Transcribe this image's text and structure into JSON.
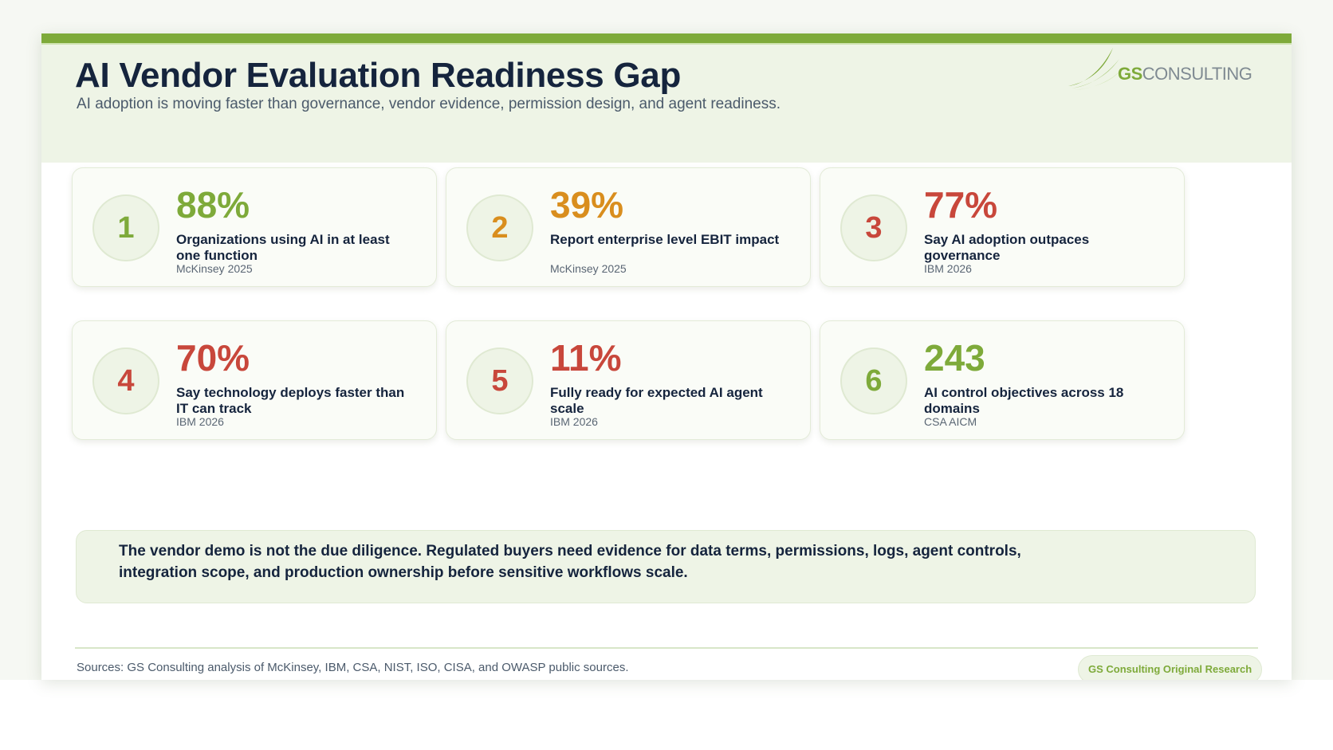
{
  "header": {
    "title": "AI Vendor Evaluation Readiness Gap",
    "subtitle": "AI adoption is moving faster than governance, vendor evidence, permission design, and agent readiness."
  },
  "logo": {
    "prefix": "GS",
    "suffix": "CONSULTING"
  },
  "colors": {
    "accent_green": "#7eaa3a",
    "accent_orange": "#d98e1e",
    "accent_red": "#c8473b",
    "navy": "#15243d"
  },
  "cards": [
    {
      "number": "1",
      "stat": "88%",
      "label": "Organizations using AI in at least one function",
      "source": "McKinsey 2025",
      "tone": "green"
    },
    {
      "number": "2",
      "stat": "39%",
      "label": "Report enterprise level EBIT impact",
      "source": "McKinsey 2025",
      "tone": "orange"
    },
    {
      "number": "3",
      "stat": "77%",
      "label": "Say AI adoption outpaces governance",
      "source": "IBM 2026",
      "tone": "red"
    },
    {
      "number": "4",
      "stat": "70%",
      "label": "Say technology deploys faster than IT can track",
      "source": "IBM 2026",
      "tone": "red"
    },
    {
      "number": "5",
      "stat": "11%",
      "label": "Fully ready for expected AI agent scale",
      "source": "IBM 2026",
      "tone": "red"
    },
    {
      "number": "6",
      "stat": "243",
      "label": "AI control objectives across 18 domains",
      "source": "CSA AICM",
      "tone": "green"
    }
  ],
  "callout": {
    "text": "The vendor demo is not the due diligence. Regulated buyers need evidence for data terms, permissions, logs, agent controls, integration scope, and production ownership before sensitive workflows scale."
  },
  "footer": {
    "sources": "Sources: GS Consulting analysis of McKinsey, IBM, CSA, NIST, ISO, CISA, and OWASP public sources.",
    "badge": "GS Consulting Original Research"
  }
}
